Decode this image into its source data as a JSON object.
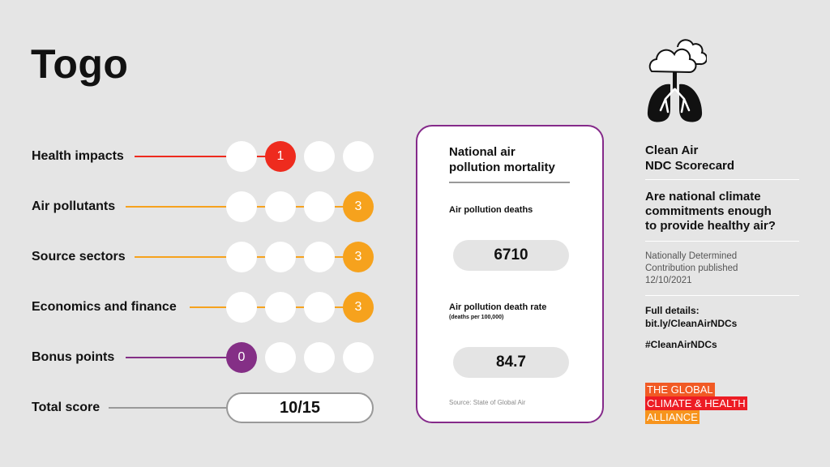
{
  "country": "Togo",
  "rows": [
    {
      "label": "Health impacts",
      "score": "1",
      "color": "#ee2b1e"
    },
    {
      "label": "Air pollutants",
      "score": "3",
      "color": "#f6a21d"
    },
    {
      "label": "Source sectors",
      "score": "3",
      "color": "#f6a21d"
    },
    {
      "label": "Economics and finance",
      "score": "3",
      "color": "#f6a21d"
    },
    {
      "label": "Bonus points",
      "score": "0",
      "color": "#842f86"
    }
  ],
  "total": {
    "label": "Total score",
    "value": "10/15"
  },
  "card": {
    "title_line1": "National air",
    "title_line2": "pollution mortality",
    "deaths_label": "Air pollution deaths",
    "deaths_value": "6710",
    "rate_label": "Air pollution death rate",
    "rate_note": "(deaths per 100,000)",
    "rate_value": "84.7",
    "source": "Source: State of Global Air"
  },
  "side": {
    "heading_line1": "Clean Air",
    "heading_line2": "NDC Scorecard",
    "question_line1": "Are national climate",
    "question_line2": "commitments enough",
    "question_line3": "to provide healthy air?",
    "ndc_line1": "Nationally Determined",
    "ndc_line2": "Contribution published",
    "ndc_line3": "12/10/2021",
    "full_line1": "Full details:",
    "full_line2": "bit.ly/CleanAirNDCs",
    "hashtag": "#CleanAirNDCs"
  },
  "logo": {
    "line1": "THE GLOBAL",
    "line2": "CLIMATE & HEALTH",
    "line3": "ALLIANCE"
  },
  "icon": "cloud-lungs-icon"
}
